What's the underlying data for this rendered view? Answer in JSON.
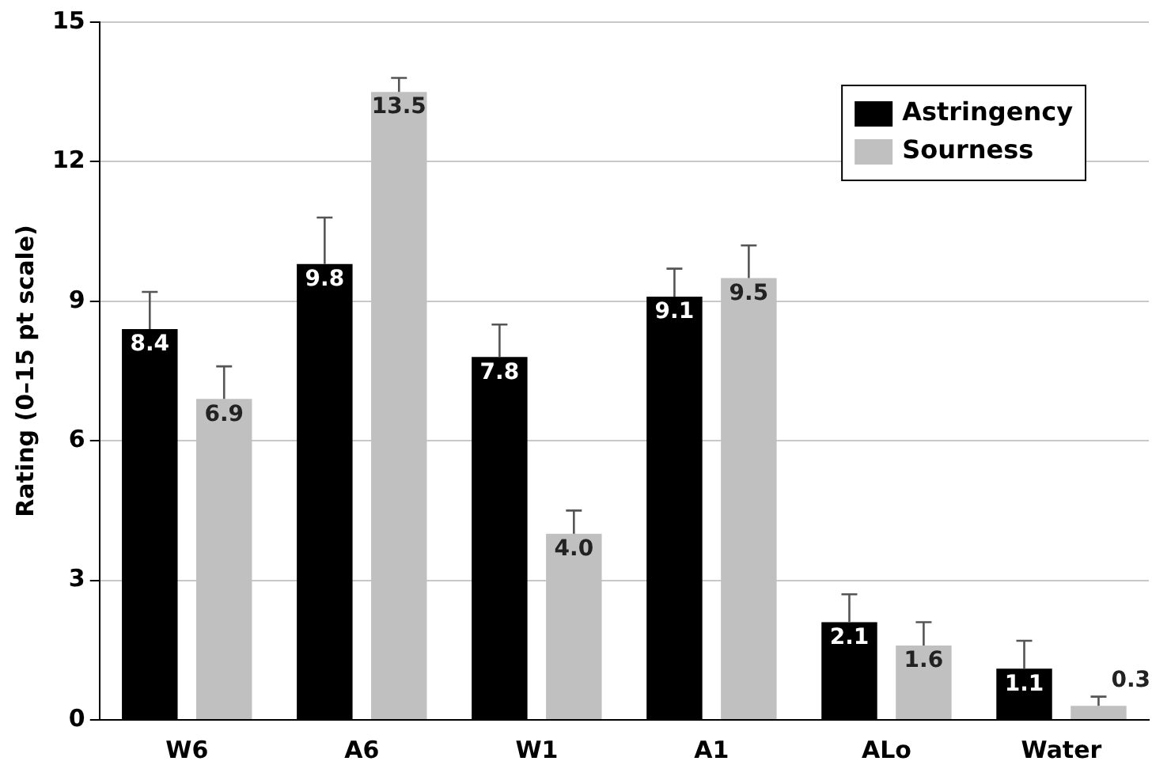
{
  "chart_data": {
    "type": "bar",
    "ylabel": "Rating (0–15 pt scale)",
    "categories": [
      "W6",
      "A6",
      "W1",
      "A1",
      "ALo",
      "Water"
    ],
    "series": [
      {
        "name": "Astringency",
        "color": "#000000",
        "values": [
          8.4,
          9.8,
          7.8,
          9.1,
          2.1,
          1.1
        ],
        "value_labels": [
          "8.4",
          "9.8",
          "7.8",
          "9.1",
          "2.1",
          "1.1"
        ],
        "errors": [
          [
            8.4,
            9.2
          ],
          [
            9.8,
            10.8
          ],
          [
            7.8,
            8.5
          ],
          [
            9.1,
            9.7
          ],
          [
            2.1,
            2.7
          ],
          [
            1.1,
            1.7
          ]
        ]
      },
      {
        "name": "Sourness",
        "color": "#c0c0c0",
        "values": [
          6.9,
          13.5,
          4.0,
          9.5,
          1.6,
          0.3
        ],
        "value_labels": [
          "6.9",
          "13.5",
          "4.0",
          "9.5",
          "1.6",
          "0.3"
        ],
        "errors": [
          [
            6.9,
            7.6
          ],
          [
            13.5,
            13.8
          ],
          [
            4.0,
            4.5
          ],
          [
            9.5,
            10.2
          ],
          [
            1.6,
            2.1
          ],
          [
            0.3,
            0.5
          ]
        ]
      }
    ],
    "ylim": [
      0,
      15
    ],
    "yticks": [
      0,
      3,
      6,
      9,
      12,
      15
    ],
    "grid": "y",
    "legend": "top right"
  }
}
